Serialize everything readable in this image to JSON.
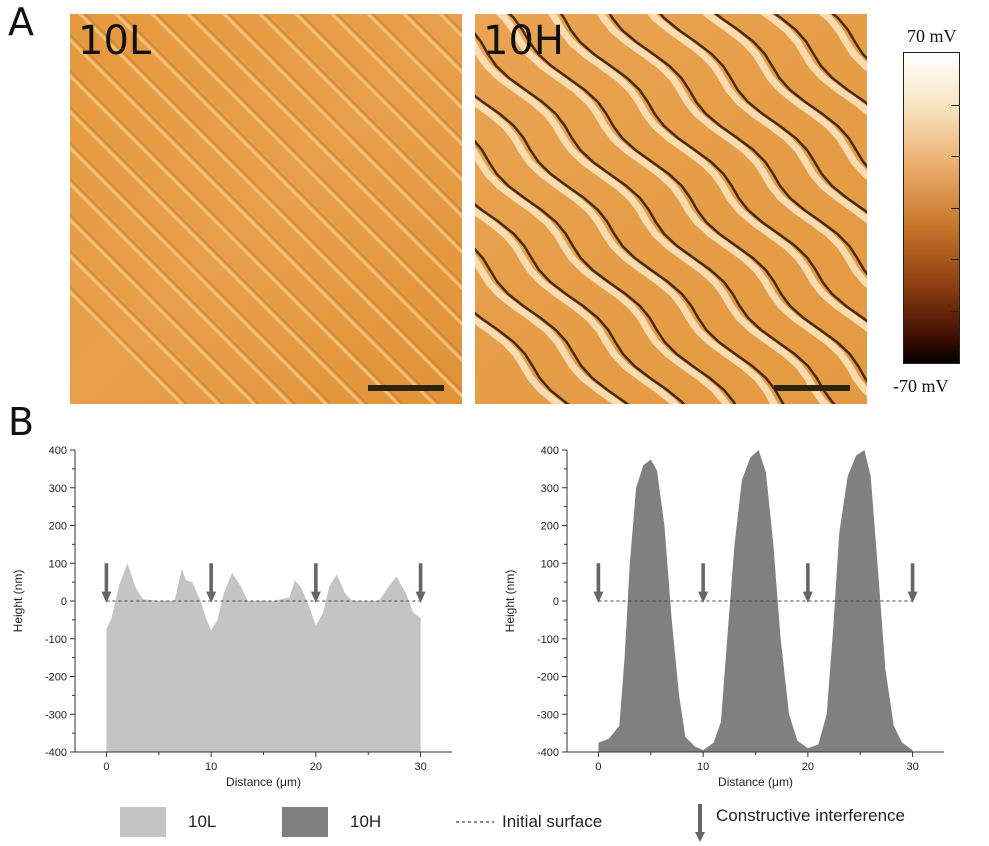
{
  "panels": {
    "A": "A",
    "B": "B"
  },
  "afm_images": [
    {
      "label": "10L"
    },
    {
      "label": "10H"
    }
  ],
  "colorbar": {
    "max_label": "70 mV",
    "min_label": "-70 mV",
    "colors": [
      "#ffffff",
      "#f7e3bd",
      "#e9a866",
      "#c8782c",
      "#8d3f10",
      "#3d0d02",
      "#000000"
    ]
  },
  "chart_data": [
    {
      "type": "area",
      "series_name": "10L",
      "color": "#c4c4c4",
      "xlabel": "Distance (μm)",
      "ylabel": "Height (nm)",
      "xlim": [
        -3,
        33
      ],
      "ylim": [
        -400,
        400
      ],
      "x_ticks": [
        0,
        10,
        20,
        30
      ],
      "y_ticks": [
        -400,
        -300,
        -200,
        -100,
        0,
        100,
        200,
        300,
        400
      ],
      "points": [
        [
          0,
          -75
        ],
        [
          0.5,
          -45
        ],
        [
          1.2,
          40
        ],
        [
          2,
          100
        ],
        [
          2.8,
          35
        ],
        [
          3.5,
          5
        ],
        [
          5,
          0
        ],
        [
          6.5,
          0
        ],
        [
          7.2,
          85
        ],
        [
          7.6,
          55
        ],
        [
          8.2,
          50
        ],
        [
          9,
          0
        ],
        [
          9.5,
          -45
        ],
        [
          10,
          -78
        ],
        [
          10.6,
          -50
        ],
        [
          11.2,
          20
        ],
        [
          12,
          75
        ],
        [
          12.8,
          40
        ],
        [
          13.5,
          0
        ],
        [
          16,
          0
        ],
        [
          17.5,
          10
        ],
        [
          18,
          55
        ],
        [
          18.6,
          35
        ],
        [
          19.3,
          -10
        ],
        [
          20,
          -65
        ],
        [
          20.7,
          -30
        ],
        [
          21.3,
          40
        ],
        [
          22,
          70
        ],
        [
          22.8,
          20
        ],
        [
          23.5,
          0
        ],
        [
          26,
          0
        ],
        [
          27,
          40
        ],
        [
          27.7,
          65
        ],
        [
          28.6,
          20
        ],
        [
          29.3,
          -30
        ],
        [
          30,
          -45
        ]
      ],
      "arrow_x": [
        0,
        10,
        20,
        30
      ],
      "initial_surface": 0
    },
    {
      "type": "area",
      "series_name": "10H",
      "color": "#808080",
      "xlabel": "Distance (μm)",
      "ylabel": "Height (nm)",
      "xlim": [
        -3,
        33
      ],
      "ylim": [
        -400,
        400
      ],
      "x_ticks": [
        0,
        10,
        20,
        30
      ],
      "y_ticks": [
        -400,
        -300,
        -200,
        -100,
        0,
        100,
        200,
        300,
        400
      ],
      "points": [
        [
          0,
          -375
        ],
        [
          1,
          -365
        ],
        [
          2,
          -330
        ],
        [
          2.5,
          -150
        ],
        [
          3,
          100
        ],
        [
          3.6,
          300
        ],
        [
          4.3,
          360
        ],
        [
          5,
          375
        ],
        [
          5.6,
          345
        ],
        [
          6.3,
          200
        ],
        [
          7,
          -50
        ],
        [
          7.7,
          -250
        ],
        [
          8.3,
          -360
        ],
        [
          9.2,
          -385
        ],
        [
          10,
          -395
        ],
        [
          11,
          -375
        ],
        [
          11.7,
          -320
        ],
        [
          12.3,
          -100
        ],
        [
          13,
          150
        ],
        [
          13.7,
          320
        ],
        [
          14.5,
          380
        ],
        [
          15.3,
          400
        ],
        [
          16,
          340
        ],
        [
          16.7,
          150
        ],
        [
          17.4,
          -100
        ],
        [
          18.2,
          -300
        ],
        [
          19,
          -370
        ],
        [
          20,
          -390
        ],
        [
          21,
          -380
        ],
        [
          21.8,
          -300
        ],
        [
          22.4,
          -80
        ],
        [
          23,
          180
        ],
        [
          23.8,
          330
        ],
        [
          24.6,
          385
        ],
        [
          25.4,
          400
        ],
        [
          26,
          330
        ],
        [
          26.7,
          80
        ],
        [
          27.4,
          -180
        ],
        [
          28.2,
          -330
        ],
        [
          29,
          -375
        ],
        [
          30,
          -395
        ]
      ],
      "arrow_x": [
        0,
        10,
        20,
        30
      ],
      "initial_surface": 0
    }
  ],
  "legend": {
    "items": [
      {
        "label": "10L",
        "color": "#c4c4c4"
      },
      {
        "label": "10H",
        "color": "#808080"
      },
      {
        "label": "Initial surface"
      },
      {
        "label": "Constructive interference"
      }
    ]
  }
}
